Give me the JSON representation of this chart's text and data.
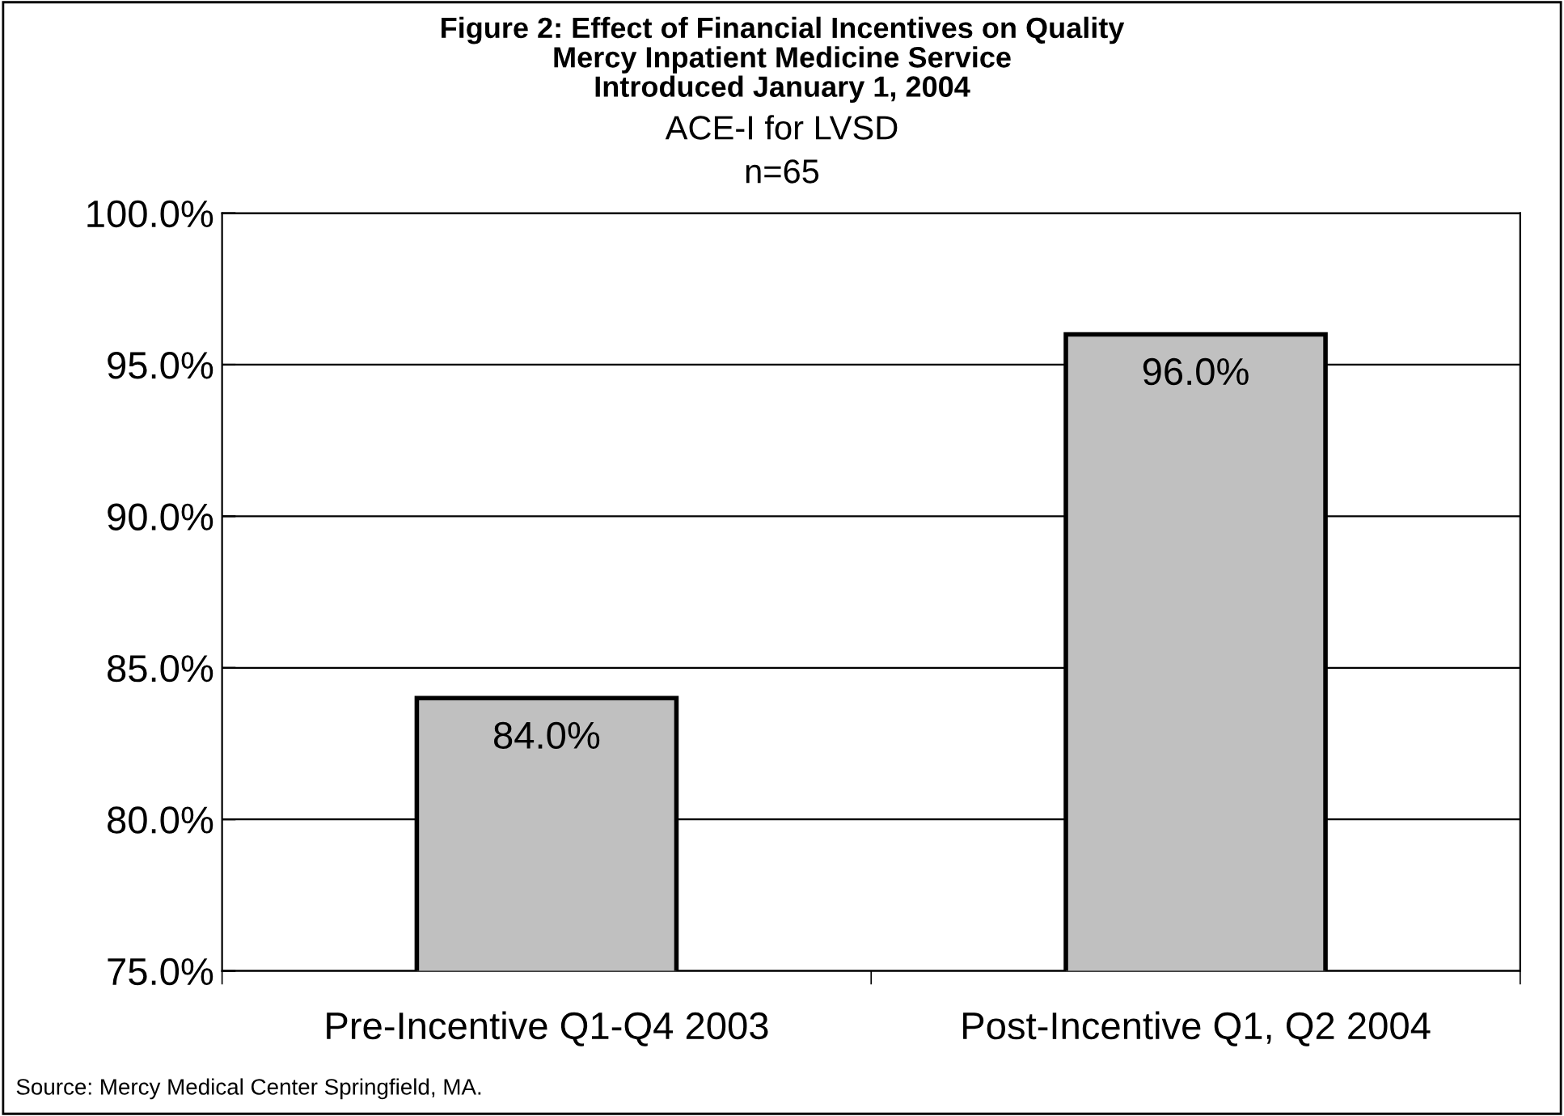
{
  "chart_data": {
    "type": "bar",
    "title": "Figure 2: Effect of Financial Incentives on Quality\nMercy Inpatient Medicine Service\nIntroduced January 1, 2004",
    "subtitle": "ACE-I for LVSD\nn=65",
    "categories": [
      "Pre-Incentive Q1-Q4 2003",
      "Post-Incentive Q1, Q2 2004"
    ],
    "values": [
      84.0,
      96.0
    ],
    "color": "#c0c0c0",
    "value_labels": [
      "84.0%",
      "96.0%"
    ],
    "ylim": [
      75,
      100
    ],
    "yticks": [
      {
        "value": 75,
        "label": "75.0%"
      },
      {
        "value": 80,
        "label": "80.0%"
      },
      {
        "value": 85,
        "label": "85.0%"
      },
      {
        "value": 90,
        "label": "90.0%"
      },
      {
        "value": 95,
        "label": "95.0%"
      },
      {
        "value": 100,
        "label": "100.0%"
      }
    ],
    "grid": "y",
    "legend": false,
    "annotations": [
      "Source: Mercy Medical Center Springfield, MA."
    ]
  }
}
